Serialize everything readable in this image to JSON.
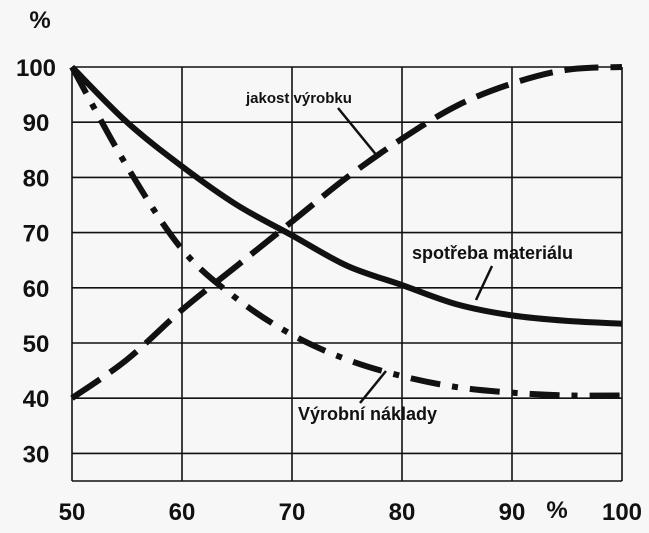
{
  "chart_data": {
    "type": "line",
    "xlim": [
      50,
      100
    ],
    "ylim": [
      25,
      100
    ],
    "x_ticks": [
      "50",
      "60",
      "70",
      "80",
      "90",
      "100"
    ],
    "y_ticks": [
      "100",
      "90",
      "80",
      "70",
      "60",
      "50",
      "40",
      "30"
    ],
    "y_unit": "%",
    "x_unit": "%",
    "grid": true,
    "series": [
      {
        "name": "jakost výrobku",
        "style": "dashed",
        "x": [
          50,
          55,
          60,
          65,
          70,
          75,
          80,
          85,
          90,
          95,
          100
        ],
        "y": [
          40,
          47,
          56,
          64,
          72,
          80,
          87,
          93,
          97,
          99.5,
          100
        ]
      },
      {
        "name": "spotřeba materiálu",
        "style": "solid",
        "x": [
          50,
          55,
          60,
          65,
          70,
          75,
          80,
          85,
          90,
          95,
          100
        ],
        "y": [
          100,
          90,
          82,
          75,
          69.5,
          64,
          60.5,
          57,
          55,
          54,
          53.5
        ]
      },
      {
        "name": "Výrobní náklady",
        "style": "dash-dot",
        "x": [
          50,
          55,
          60,
          65,
          70,
          75,
          80,
          85,
          90,
          95,
          100
        ],
        "y": [
          100,
          82,
          67,
          58,
          51.5,
          47,
          44,
          42,
          41,
          40.5,
          40.5
        ]
      }
    ]
  }
}
